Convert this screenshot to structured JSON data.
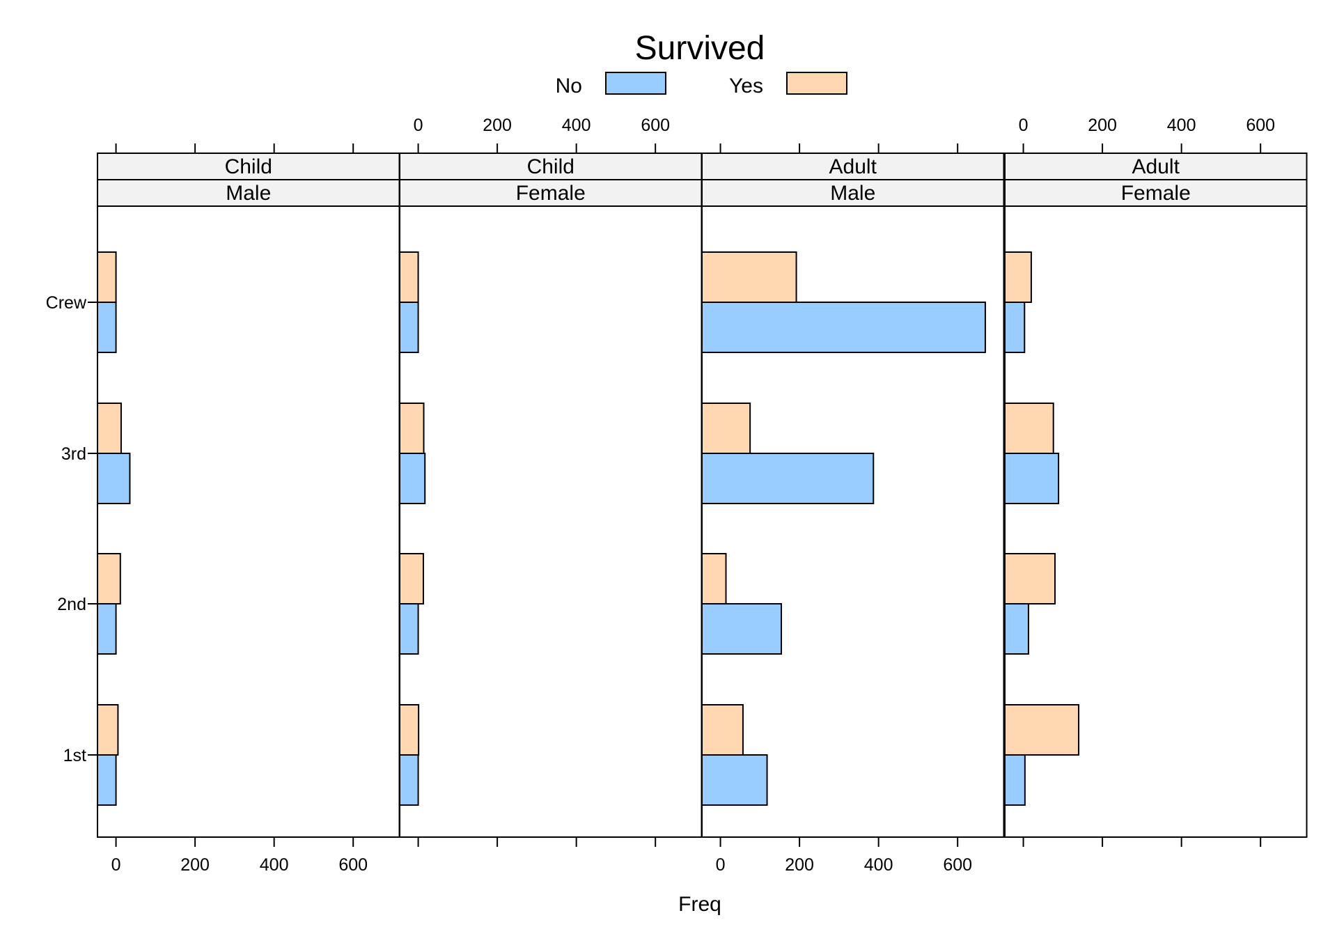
{
  "chart_data": {
    "type": "bar",
    "orientation": "horizontal",
    "title": "Survived",
    "xlabel": "Freq",
    "ylabel": "",
    "xlim": [
      -46.8,
      716.8
    ],
    "xticks": [
      0,
      200,
      400,
      600
    ],
    "categories": [
      "1st",
      "2nd",
      "3rd",
      "Crew"
    ],
    "legend": {
      "position": "top",
      "entries": [
        {
          "label": "No",
          "color": "#99ccff"
        },
        {
          "label": "Yes",
          "color": "#ffd8b1"
        }
      ]
    },
    "grid": false,
    "panels": [
      {
        "strip_top": "Child",
        "strip_bottom": "Male",
        "series": [
          {
            "name": "No",
            "values": [
              0,
              0,
              35,
              0
            ]
          },
          {
            "name": "Yes",
            "values": [
              5,
              11,
              13,
              0
            ]
          }
        ]
      },
      {
        "strip_top": "Child",
        "strip_bottom": "Female",
        "series": [
          {
            "name": "No",
            "values": [
              0,
              0,
              17,
              0
            ]
          },
          {
            "name": "Yes",
            "values": [
              1,
              13,
              14,
              0
            ]
          }
        ]
      },
      {
        "strip_top": "Adult",
        "strip_bottom": "Male",
        "series": [
          {
            "name": "No",
            "values": [
              118,
              154,
              387,
              670
            ]
          },
          {
            "name": "Yes",
            "values": [
              57,
              14,
              75,
              192
            ]
          }
        ]
      },
      {
        "strip_top": "Adult",
        "strip_bottom": "Female",
        "series": [
          {
            "name": "No",
            "values": [
              4,
              13,
              89,
              3
            ]
          },
          {
            "name": "Yes",
            "values": [
              140,
              80,
              76,
              20
            ]
          }
        ]
      }
    ]
  }
}
